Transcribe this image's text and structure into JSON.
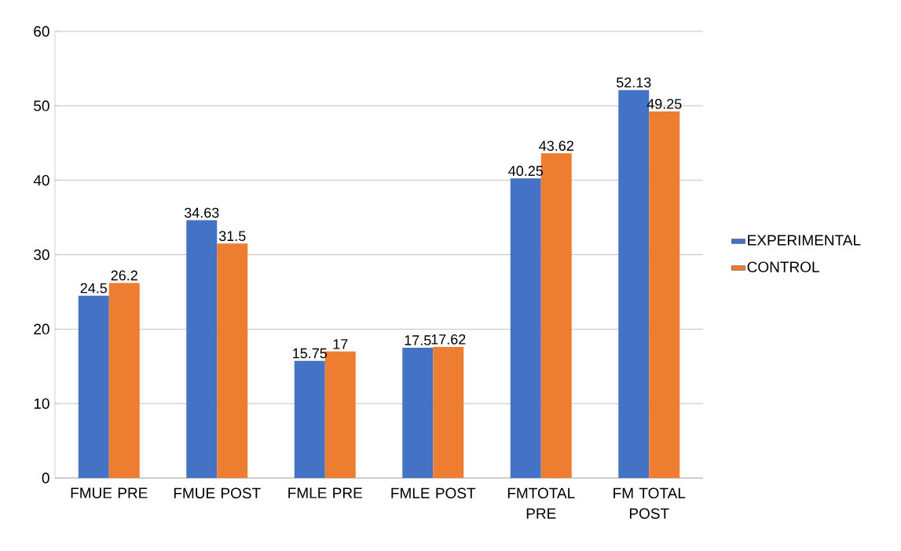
{
  "chart_data": {
    "type": "bar",
    "categories": [
      "FMUE PRE",
      "FMUE POST",
      "FMLE PRE",
      "FMLE POST",
      "FMTOTAL PRE",
      "FM TOTAL POST"
    ],
    "series": [
      {
        "name": "EXPERIMENTAL",
        "color": "#4472c4",
        "values": [
          24.5,
          34.63,
          15.75,
          17.5,
          40.25,
          52.13
        ]
      },
      {
        "name": "CONTROL",
        "color": "#ed7d31",
        "values": [
          26.2,
          31.5,
          17,
          17.62,
          43.62,
          49.25
        ]
      }
    ],
    "ylim": [
      0,
      60
    ],
    "yticks": [
      0,
      10,
      20,
      30,
      40,
      50,
      60
    ],
    "grid": "y",
    "legend": "right",
    "data_labels": true
  }
}
